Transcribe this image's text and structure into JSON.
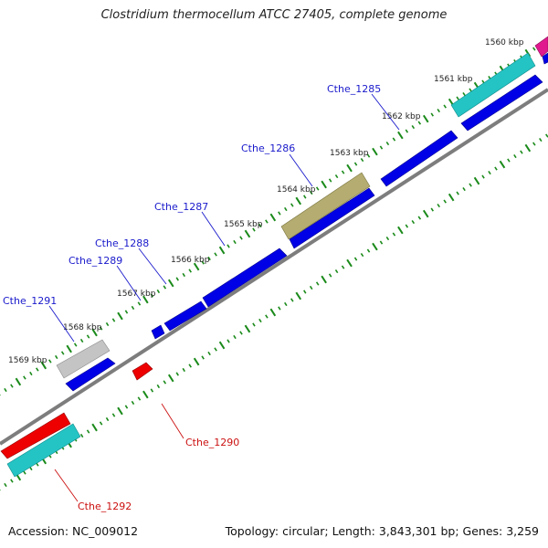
{
  "title": "Clostridium thermocellum ATCC 27405, complete genome",
  "footer": {
    "accession": "Accession: NC_009012",
    "summary": "Topology: circular; Length: 3,843,301 bp; Genes: 3,259"
  },
  "colors": {
    "forward_gene": "#0000ee",
    "reverse_gene": "#ee0000",
    "backbone": "#808080",
    "tick": "#1a8a1a",
    "label_forward": "#1a1acc",
    "label_reverse": "#cc1111"
  },
  "scale_labels": [
    "1560 kbp",
    "1561 kbp",
    "1562 kbp",
    "1563 kbp",
    "1564 kbp",
    "1565 kbp",
    "1566 kbp",
    "1567 kbp",
    "1568 kbp",
    "1569 kbp"
  ],
  "gene_labels_forward": [
    "Cthe_1285",
    "Cthe_1286",
    "Cthe_1287",
    "Cthe_1288",
    "Cthe_1289",
    "Cthe_1291"
  ],
  "gene_labels_reverse": [
    "Cthe_1290",
    "Cthe_1292"
  ]
}
